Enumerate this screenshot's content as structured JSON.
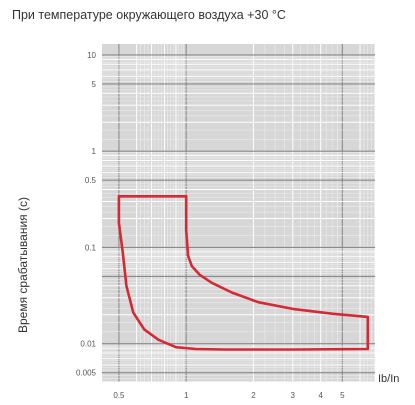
{
  "chart_data": {
    "type": "line",
    "title": "При температуре окружающего воздуха +30 °C",
    "ylabel": "Время срабатывания (с)",
    "xlabel": "Ib/In",
    "x_scale": "log",
    "y_scale": "log",
    "xlim": [
      0.42,
      7
    ],
    "ylim": [
      0.004,
      13
    ],
    "grid": true,
    "x_ticks": [
      {
        "value": 0.5,
        "label": "0.5"
      },
      {
        "value": 1,
        "label": "1"
      },
      {
        "value": 2,
        "label": "2"
      },
      {
        "value": 3,
        "label": "3"
      },
      {
        "value": 4,
        "label": "4"
      },
      {
        "value": 5,
        "label": "5"
      }
    ],
    "y_ticks": [
      {
        "value": 10,
        "label": "10"
      },
      {
        "value": 5,
        "label": "5"
      },
      {
        "value": 1,
        "label": "1"
      },
      {
        "value": 0.5,
        "label": "0.5"
      },
      {
        "value": 0.1,
        "label": "0.1"
      },
      {
        "value": 0.01,
        "label": "0.01"
      },
      {
        "value": 0.005,
        "label": "0.005"
      }
    ],
    "series": [
      {
        "color": "#d42a35",
        "x": [
          0.5,
          1.0,
          1.0,
          1.02,
          1.06,
          1.15,
          1.3,
          1.6,
          2.1,
          3.0,
          4.5,
          6.5,
          6.5,
          3.0,
          1.5,
          1.1,
          0.9,
          0.75,
          0.65,
          0.58,
          0.54,
          0.52,
          0.5,
          0.5
        ],
        "y": [
          0.34,
          0.34,
          0.15,
          0.082,
          0.064,
          0.052,
          0.043,
          0.034,
          0.027,
          0.023,
          0.0205,
          0.019,
          0.0088,
          0.0087,
          0.0087,
          0.0088,
          0.0092,
          0.011,
          0.014,
          0.021,
          0.04,
          0.09,
          0.18,
          0.34
        ]
      }
    ]
  }
}
